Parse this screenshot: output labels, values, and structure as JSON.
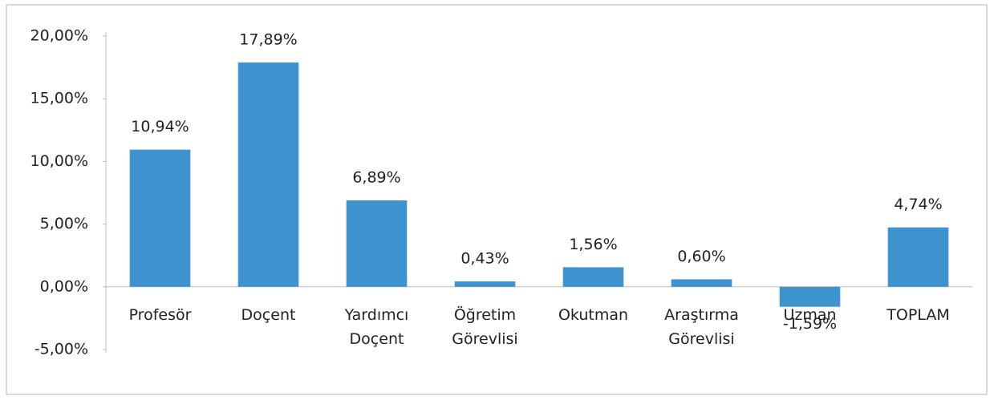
{
  "chart_data": {
    "type": "bar",
    "categories": [
      "Profesör",
      "Doçent",
      "Yardımcı Doçent",
      "Öğretim Görevlisi",
      "Okutman",
      "Araştırma Görevlisi",
      "Uzman",
      "TOPLAM"
    ],
    "values": [
      10.94,
      17.89,
      6.89,
      0.43,
      1.56,
      0.6,
      -1.59,
      4.74
    ],
    "value_labels": [
      "10,94%",
      "17,89%",
      "6,89%",
      "0,43%",
      "1,56%",
      "0,60%",
      "-1,59%",
      "4,74%"
    ],
    "color": "#3f93cf",
    "ylim": [
      -5,
      20
    ],
    "yticks": [
      {
        "value": -5,
        "label": "-5,00%"
      },
      {
        "value": 0,
        "label": "0,00%"
      },
      {
        "value": 5,
        "label": "5,00%"
      },
      {
        "value": 10,
        "label": "10,00%"
      },
      {
        "value": 15,
        "label": "15,00%"
      },
      {
        "value": 20,
        "label": "20,00%"
      }
    ],
    "grid": false
  }
}
